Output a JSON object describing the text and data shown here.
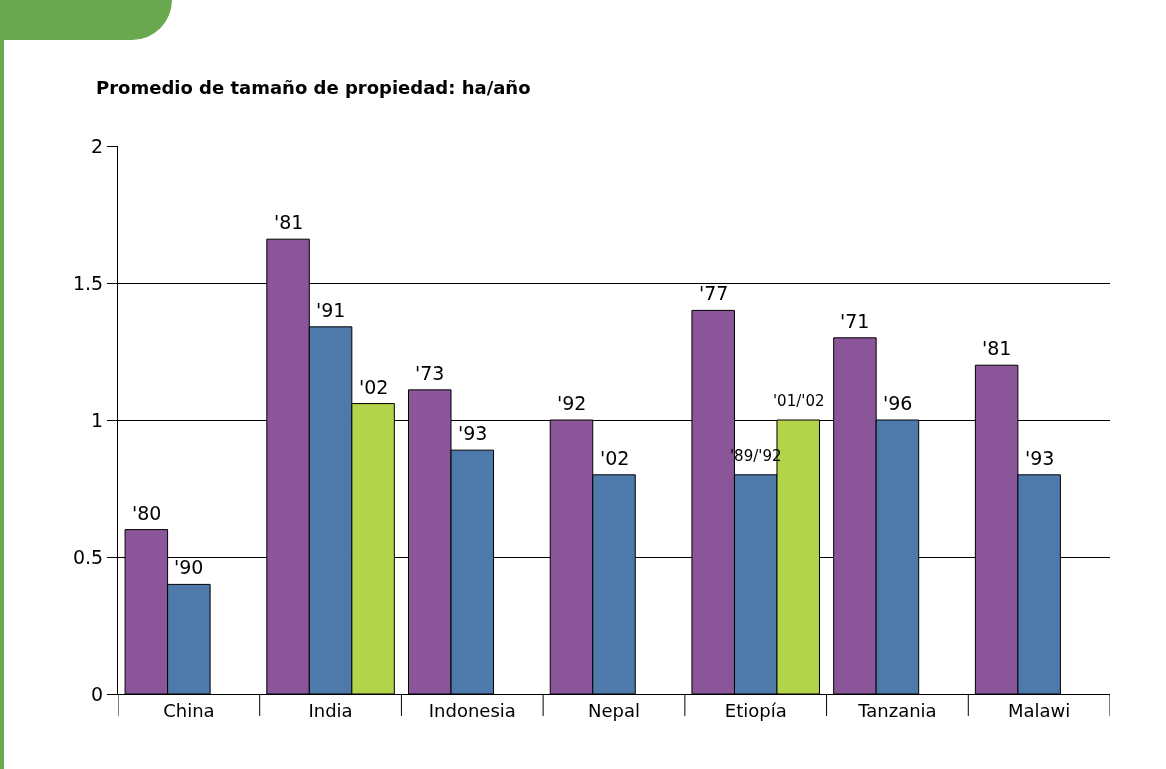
{
  "chart_data": {
    "type": "bar",
    "title": "Promedio de tamaño de propiedad: ha/año",
    "categories": [
      "China",
      "India",
      "Indonesia",
      "Nepal",
      "Etiopía",
      "Tanzania",
      "Malawi"
    ],
    "series": [
      {
        "color": "#8a5699",
        "values": [
          0.6,
          1.66,
          1.11,
          1.0,
          1.4,
          1.3,
          1.2
        ]
      },
      {
        "color": "#4e7aab",
        "values": [
          0.4,
          1.34,
          0.89,
          0.8,
          0.8,
          1.0,
          0.8
        ]
      },
      {
        "color": "#b2d34a",
        "values": [
          null,
          1.06,
          null,
          null,
          1.0,
          null,
          null
        ]
      }
    ],
    "annotations": [
      "'80",
      "'90",
      "'81",
      "'91",
      "'02",
      "'73",
      "'93",
      "'92",
      "'02",
      "'77",
      "'89/'92",
      "'01/'02",
      "'71",
      "'96",
      "'81",
      "'93"
    ],
    "ylim": [
      0,
      2
    ],
    "yticks": [
      0,
      0.5,
      1,
      1.5,
      2
    ],
    "grid": "y"
  }
}
